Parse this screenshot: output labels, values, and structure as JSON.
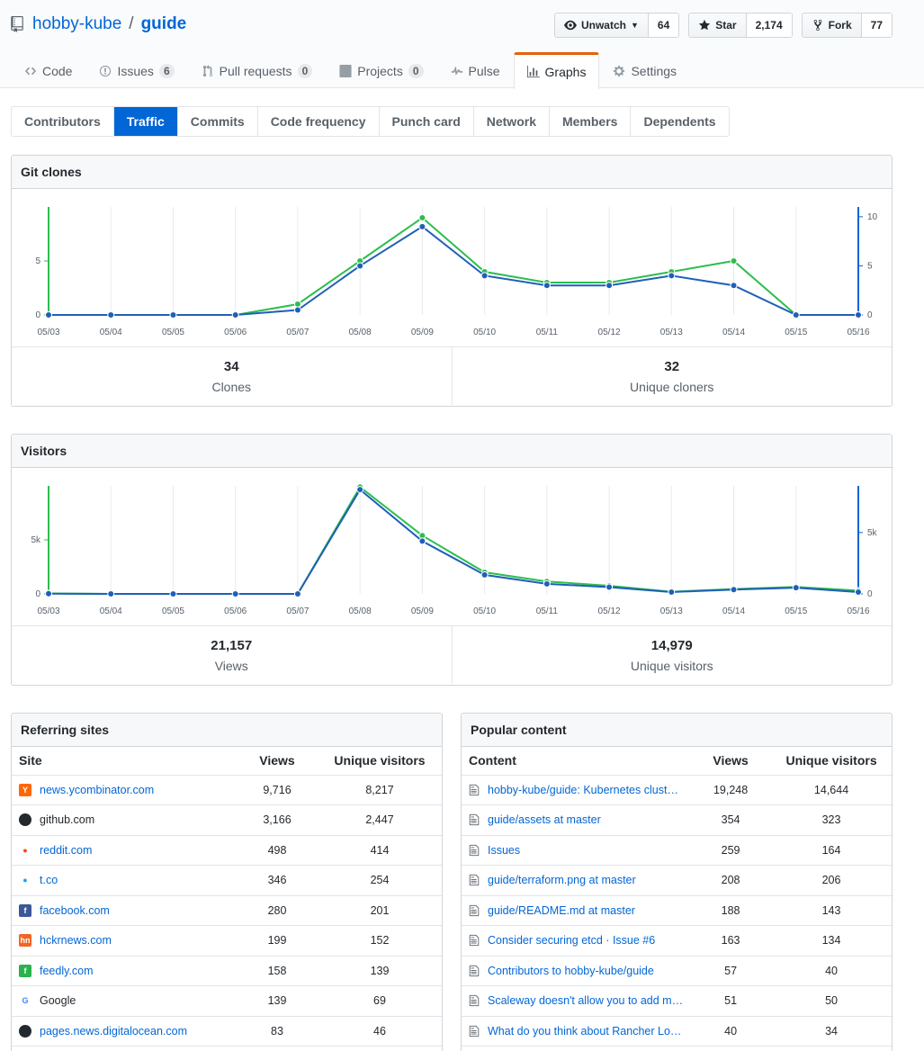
{
  "repo": {
    "owner": "hobby-kube",
    "separator": "/",
    "name": "guide"
  },
  "actions": {
    "watch": {
      "label": "Unwatch",
      "count": "64"
    },
    "star": {
      "label": "Star",
      "count": "2,174"
    },
    "fork": {
      "label": "Fork",
      "count": "77"
    }
  },
  "reponav": {
    "code": "Code",
    "issues": {
      "label": "Issues",
      "count": "6"
    },
    "pulls": {
      "label": "Pull requests",
      "count": "0"
    },
    "projects": {
      "label": "Projects",
      "count": "0"
    },
    "pulse": "Pulse",
    "graphs": "Graphs",
    "settings": "Settings"
  },
  "subnav": [
    "Contributors",
    "Traffic",
    "Commits",
    "Code frequency",
    "Punch card",
    "Network",
    "Members",
    "Dependents"
  ],
  "clones": {
    "title": "Git clones",
    "total": "34",
    "total_label": "Clones",
    "unique": "32",
    "unique_label": "Unique cloners"
  },
  "visitors": {
    "title": "Visitors",
    "total": "21,157",
    "total_label": "Views",
    "unique": "14,979",
    "unique_label": "Unique visitors"
  },
  "chart_data": [
    {
      "type": "line",
      "title": "Git clones",
      "categories": [
        "05/03",
        "05/04",
        "05/05",
        "05/06",
        "05/07",
        "05/08",
        "05/09",
        "05/10",
        "05/11",
        "05/12",
        "05/13",
        "05/14",
        "05/15",
        "05/16"
      ],
      "left_axis": {
        "ticks": [
          0,
          5
        ],
        "labels": [
          "0",
          "5"
        ],
        "range": [
          0,
          10
        ],
        "color": "#2cbe4e"
      },
      "right_axis": {
        "ticks": [
          0,
          5,
          10
        ],
        "labels": [
          "0",
          "5",
          "10"
        ],
        "range": [
          0,
          11
        ],
        "color": "#0366d6"
      },
      "series": [
        {
          "name": "Clones",
          "axis": "left",
          "color": "#2cbe4e",
          "values": [
            0,
            0,
            0,
            0,
            1,
            5,
            9,
            4,
            3,
            3,
            4,
            5,
            0,
            0
          ]
        },
        {
          "name": "Unique cloners",
          "axis": "right",
          "color": "#1f5fb8",
          "values": [
            0,
            0,
            0,
            0,
            0.5,
            5,
            9,
            4,
            3,
            3,
            4,
            3,
            0,
            0
          ]
        }
      ]
    },
    {
      "type": "line",
      "title": "Visitors",
      "categories": [
        "05/03",
        "05/04",
        "05/05",
        "05/06",
        "05/07",
        "05/08",
        "05/09",
        "05/10",
        "05/11",
        "05/12",
        "05/13",
        "05/14",
        "05/15",
        "05/16"
      ],
      "left_axis": {
        "ticks": [
          0,
          5000
        ],
        "labels": [
          "0",
          "5k"
        ],
        "range": [
          0,
          10000
        ],
        "color": "#2cbe4e"
      },
      "right_axis": {
        "ticks": [
          0,
          5000
        ],
        "labels": [
          "0",
          "5k"
        ],
        "range": [
          0,
          8800
        ],
        "color": "#0366d6"
      },
      "series": [
        {
          "name": "Views",
          "axis": "left",
          "color": "#2cbe4e",
          "values": [
            40,
            0,
            0,
            0,
            0,
            9900,
            5400,
            2000,
            1150,
            750,
            200,
            450,
            650,
            300
          ]
        },
        {
          "name": "Unique visitors",
          "axis": "right",
          "color": "#1f5fb8",
          "values": [
            20,
            0,
            0,
            0,
            0,
            8500,
            4300,
            1550,
            820,
            550,
            150,
            350,
            500,
            150
          ]
        }
      ]
    }
  ],
  "referring": {
    "title": "Referring sites",
    "headers": {
      "site": "Site",
      "views": "Views",
      "unique": "Unique visitors"
    },
    "rows": [
      {
        "site": "news.ycombinator.com",
        "views": "9,716",
        "unique": "8,217",
        "icon": "ycombinator-icon",
        "link": true
      },
      {
        "site": "github.com",
        "views": "3,166",
        "unique": "2,447",
        "icon": "github-icon",
        "link": false
      },
      {
        "site": "reddit.com",
        "views": "498",
        "unique": "414",
        "icon": "reddit-icon",
        "link": true
      },
      {
        "site": "t.co",
        "views": "346",
        "unique": "254",
        "icon": "twitter-icon",
        "link": true
      },
      {
        "site": "facebook.com",
        "views": "280",
        "unique": "201",
        "icon": "facebook-icon",
        "link": true
      },
      {
        "site": "hckrnews.com",
        "views": "199",
        "unique": "152",
        "icon": "hckrnews-icon",
        "link": true
      },
      {
        "site": "feedly.com",
        "views": "158",
        "unique": "139",
        "icon": "feedly-icon",
        "link": true
      },
      {
        "site": "Google",
        "views": "139",
        "unique": "69",
        "icon": "google-icon",
        "link": false
      },
      {
        "site": "pages.news.digitalocean.com",
        "views": "83",
        "unique": "46",
        "icon": "globe-icon",
        "link": true
      }
    ]
  },
  "popular": {
    "title": "Popular content",
    "headers": {
      "content": "Content",
      "views": "Views",
      "unique": "Unique visitors"
    },
    "rows": [
      {
        "content": "hobby-kube/guide: Kubernetes clust…",
        "views": "19,248",
        "unique": "14,644"
      },
      {
        "content": "guide/assets at master",
        "views": "354",
        "unique": "323"
      },
      {
        "content": "Issues",
        "views": "259",
        "unique": "164"
      },
      {
        "content": "guide/terraform.png at master",
        "views": "208",
        "unique": "206"
      },
      {
        "content": "guide/README.md at master",
        "views": "188",
        "unique": "143"
      },
      {
        "content": "Consider securing etcd · Issue #6",
        "views": "163",
        "unique": "134"
      },
      {
        "content": "Contributors to hobby-kube/guide",
        "views": "57",
        "unique": "40"
      },
      {
        "content": "Scaleway doesn't allow you to add m…",
        "views": "51",
        "unique": "50"
      },
      {
        "content": "What do you think about Rancher Lo…",
        "views": "40",
        "unique": "34"
      }
    ]
  }
}
